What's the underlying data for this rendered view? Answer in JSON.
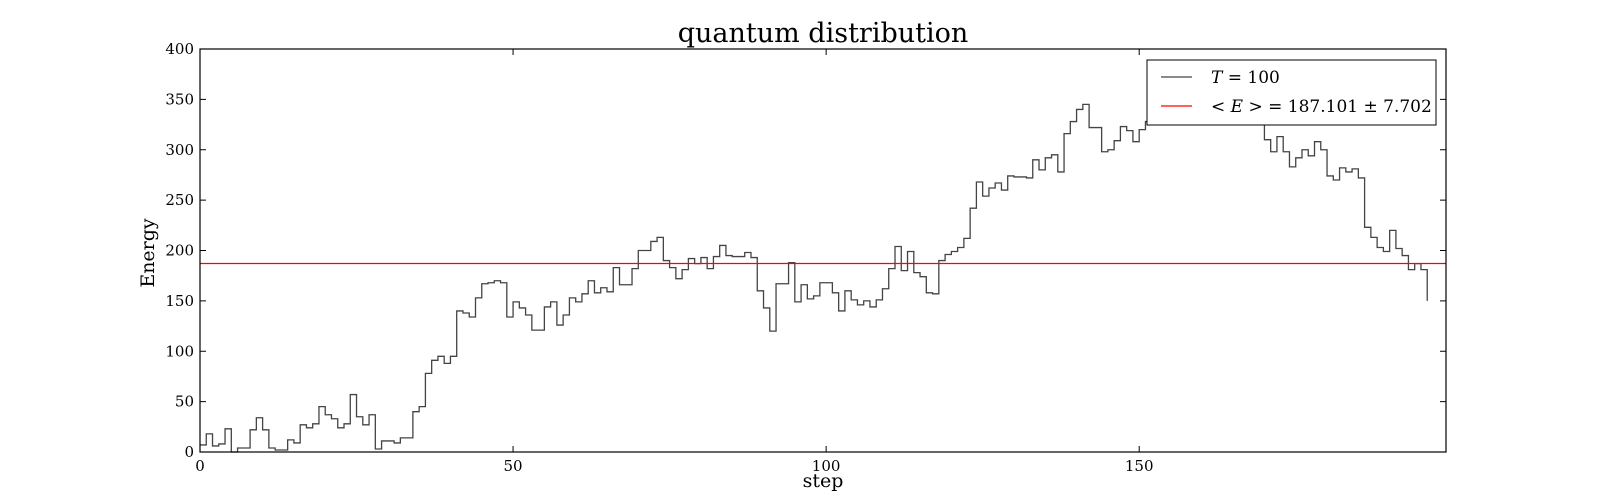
{
  "chart_data": {
    "type": "line",
    "title": "quantum distribution",
    "xlabel": "step",
    "ylabel": "Energy",
    "xlim": [
      0,
      199
    ],
    "ylim": [
      0,
      400
    ],
    "xticks": [
      0,
      50,
      100,
      150
    ],
    "yticks": [
      0,
      50,
      100,
      150,
      200,
      250,
      300,
      350,
      400
    ],
    "grid": false,
    "legend_position": "top-right",
    "series": [
      {
        "name": "T = 100",
        "color": "#444444",
        "drawstyle": "steps",
        "values": [
          7,
          18,
          6,
          8,
          23,
          0,
          4,
          4,
          22,
          34,
          22,
          4,
          2,
          2,
          12,
          9,
          27,
          24,
          28,
          45,
          37,
          33,
          24,
          28,
          57,
          35,
          27,
          37,
          3,
          11,
          11,
          9,
          14,
          14,
          40,
          45,
          78,
          91,
          95,
          88,
          95,
          140,
          138,
          134,
          153,
          167,
          168,
          170,
          168,
          134,
          149,
          143,
          136,
          121,
          121,
          144,
          149,
          126,
          136,
          153,
          149,
          157,
          170,
          158,
          163,
          159,
          183,
          166,
          166,
          182,
          200,
          200,
          209,
          213,
          190,
          183,
          172,
          181,
          192,
          187,
          193,
          182,
          194,
          205,
          195,
          194,
          194,
          198,
          193,
          160,
          143,
          120,
          167,
          167,
          188,
          149,
          166,
          152,
          155,
          168,
          168,
          158,
          140,
          160,
          151,
          146,
          150,
          144,
          151,
          162,
          182,
          204,
          180,
          199,
          178,
          174,
          158,
          157,
          190,
          196,
          199,
          203,
          212,
          242,
          268,
          254,
          262,
          267,
          260,
          274,
          273,
          273,
          272,
          290,
          280,
          292,
          295,
          278,
          316,
          328,
          340,
          345,
          322,
          322,
          298,
          300,
          309,
          323,
          319,
          308,
          320,
          328,
          332,
          336,
          340,
          338,
          335,
          330,
          340,
          345,
          342,
          346,
          344,
          340,
          336,
          332,
          337,
          340,
          339,
          334,
          310,
          298,
          313,
          298,
          283,
          292,
          300,
          294,
          308,
          300,
          274,
          270,
          282,
          278,
          281,
          272,
          223,
          213,
          203,
          199,
          220,
          202,
          195,
          181,
          187,
          181,
          150
        ]
      },
      {
        "name": "<E> = 187.101 ± 7.702",
        "color": "#ff0000",
        "constant": 187.101
      }
    ],
    "legend": [
      {
        "label_var": "T",
        "label_rest": " = 100"
      },
      {
        "label_var": "< E >",
        "label_rest": " = 187.101 ± 7.702"
      }
    ]
  }
}
